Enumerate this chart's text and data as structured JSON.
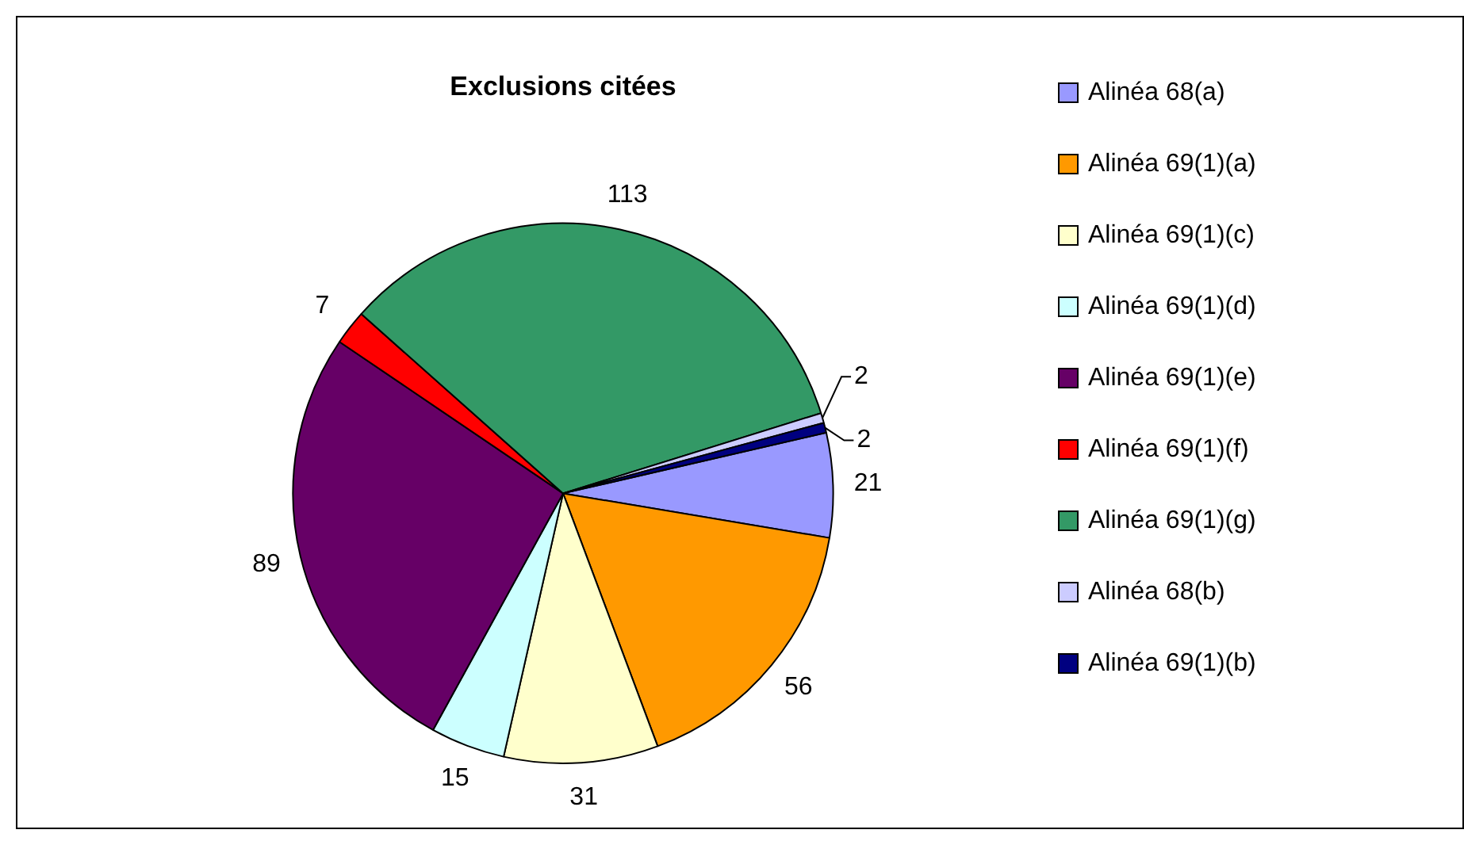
{
  "chart_data": {
    "type": "pie",
    "title": "Exclusions citées",
    "categories": [
      "Alinéa 68(a)",
      "Alinéa 69(1)(a)",
      "Alinéa 69(1)(c)",
      "Alinéa 69(1)(d)",
      "Alinéa 69(1)(e)",
      "Alinéa 69(1)(f)",
      "Alinéa 69(1)(g)",
      "Alinéa 68(b)",
      "Alinéa 69(1)(b)"
    ],
    "values": [
      21,
      56,
      31,
      15,
      89,
      7,
      113,
      2,
      2
    ],
    "colors": [
      "#9999ff",
      "#ff9900",
      "#ffffcc",
      "#ccffff",
      "#660066",
      "#ff0000",
      "#339966",
      "#ccccff",
      "#000080"
    ],
    "data_labels": true,
    "legend": "right"
  }
}
